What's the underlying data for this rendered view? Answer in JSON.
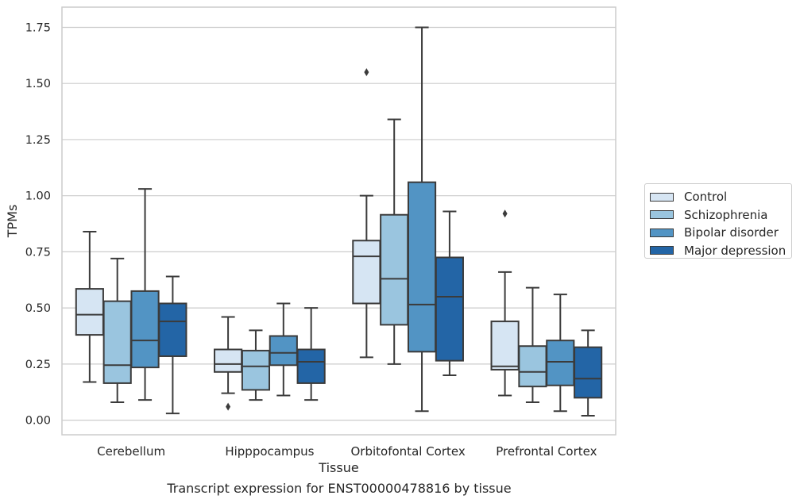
{
  "caption": "Transcript expression for ENST00000478816 by tissue",
  "legend": {
    "items": [
      {
        "label": "Control",
        "color": "#d6e5f3"
      },
      {
        "label": "Schizophrenia",
        "color": "#9ac5df"
      },
      {
        "label": "Bipolar disorder",
        "color": "#5294c4"
      },
      {
        "label": "Major depression",
        "color": "#2365a6"
      }
    ]
  },
  "chart_data": {
    "type": "box",
    "xlabel": "Tissue",
    "ylabel": "TPMs",
    "ylim": [
      -0.065,
      1.84
    ],
    "yticks": [
      0.0,
      0.25,
      0.5,
      0.75,
      1.0,
      1.25,
      1.5,
      1.75
    ],
    "ytick_labels": [
      "0.00",
      "0.25",
      "0.50",
      "0.75",
      "1.00",
      "1.25",
      "1.50",
      "1.75"
    ],
    "grid": "horizontal",
    "legend_position": "right",
    "categories": [
      "Cerebellum",
      "Hipppocampus",
      "Orbitofontal Cortex",
      "Prefrontal Cortex"
    ],
    "series": [
      {
        "name": "Control",
        "color": "#d6e5f3",
        "boxes": [
          {
            "whislo": 0.17,
            "q1": 0.38,
            "med": 0.47,
            "q3": 0.585,
            "whishi": 0.84,
            "fliers": []
          },
          {
            "whislo": 0.12,
            "q1": 0.215,
            "med": 0.25,
            "q3": 0.315,
            "whishi": 0.46,
            "fliers": [
              0.06
            ]
          },
          {
            "whislo": 0.28,
            "q1": 0.52,
            "med": 0.73,
            "q3": 0.8,
            "whishi": 1.0,
            "fliers": [
              1.55
            ]
          },
          {
            "whislo": 0.11,
            "q1": 0.225,
            "med": 0.24,
            "q3": 0.44,
            "whishi": 0.66,
            "fliers": [
              0.92
            ]
          }
        ]
      },
      {
        "name": "Schizophrenia",
        "color": "#9ac5df",
        "boxes": [
          {
            "whislo": 0.08,
            "q1": 0.165,
            "med": 0.245,
            "q3": 0.53,
            "whishi": 0.72,
            "fliers": []
          },
          {
            "whislo": 0.09,
            "q1": 0.135,
            "med": 0.24,
            "q3": 0.31,
            "whishi": 0.4,
            "fliers": []
          },
          {
            "whislo": 0.25,
            "q1": 0.425,
            "med": 0.63,
            "q3": 0.915,
            "whishi": 1.34,
            "fliers": []
          },
          {
            "whislo": 0.08,
            "q1": 0.15,
            "med": 0.215,
            "q3": 0.33,
            "whishi": 0.59,
            "fliers": []
          }
        ]
      },
      {
        "name": "Bipolar disorder",
        "color": "#5294c4",
        "boxes": [
          {
            "whislo": 0.09,
            "q1": 0.235,
            "med": 0.355,
            "q3": 0.575,
            "whishi": 1.03,
            "fliers": []
          },
          {
            "whislo": 0.11,
            "q1": 0.245,
            "med": 0.3,
            "q3": 0.375,
            "whishi": 0.52,
            "fliers": []
          },
          {
            "whislo": 0.04,
            "q1": 0.305,
            "med": 0.515,
            "q3": 1.06,
            "whishi": 1.75,
            "fliers": []
          },
          {
            "whislo": 0.04,
            "q1": 0.155,
            "med": 0.26,
            "q3": 0.355,
            "whishi": 0.56,
            "fliers": []
          }
        ]
      },
      {
        "name": "Major depression",
        "color": "#2365a6",
        "boxes": [
          {
            "whislo": 0.03,
            "q1": 0.285,
            "med": 0.44,
            "q3": 0.52,
            "whishi": 0.64,
            "fliers": []
          },
          {
            "whislo": 0.09,
            "q1": 0.165,
            "med": 0.26,
            "q3": 0.315,
            "whishi": 0.5,
            "fliers": []
          },
          {
            "whislo": 0.2,
            "q1": 0.265,
            "med": 0.55,
            "q3": 0.725,
            "whishi": 0.93,
            "fliers": []
          },
          {
            "whislo": 0.02,
            "q1": 0.1,
            "med": 0.185,
            "q3": 0.325,
            "whishi": 0.4,
            "fliers": []
          }
        ]
      }
    ]
  }
}
